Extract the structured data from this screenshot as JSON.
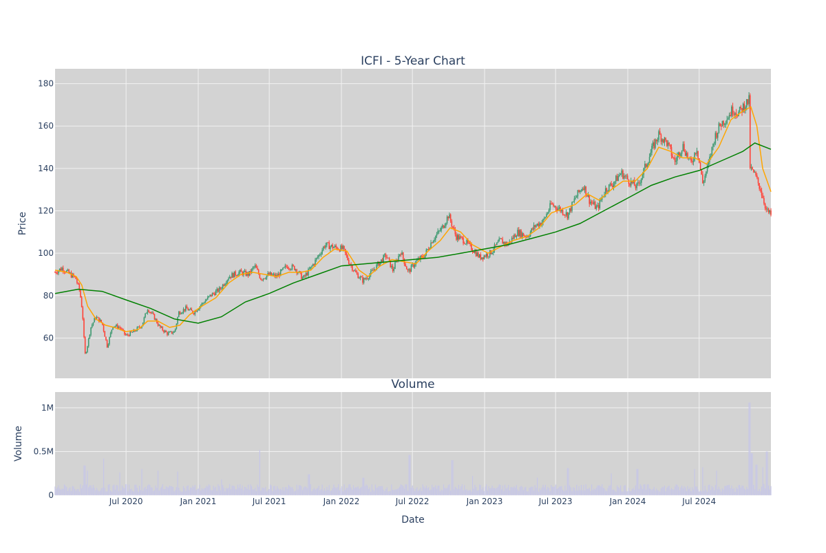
{
  "chart_data": [
    {
      "type": "candlestick",
      "title": "ICFI - 5-Year Chart",
      "ylabel": "Price",
      "xlabel": "",
      "ylim": [
        41,
        187
      ],
      "yticks": [
        60,
        80,
        100,
        120,
        140,
        160,
        180
      ],
      "grid": true,
      "legend": "none",
      "x_range": [
        "2020-01-02",
        "2024-12-31"
      ],
      "colors": {
        "background": "#d3d3d3",
        "grid": "#f2f2f2",
        "increasing": "#3d9970",
        "decreasing": "#ff4136",
        "ma_short": "#ffa500",
        "ma_long": "#008000"
      },
      "price_path": [
        [
          "2020-01-02",
          91
        ],
        [
          "2020-01-20",
          93
        ],
        [
          "2020-02-10",
          90
        ],
        [
          "2020-02-24",
          88
        ],
        [
          "2020-03-05",
          82
        ],
        [
          "2020-03-12",
          72
        ],
        [
          "2020-03-18",
          52
        ],
        [
          "2020-03-23",
          55
        ],
        [
          "2020-04-02",
          65
        ],
        [
          "2020-04-15",
          70
        ],
        [
          "2020-05-01",
          67
        ],
        [
          "2020-05-14",
          56
        ],
        [
          "2020-05-28",
          66
        ],
        [
          "2020-06-15",
          65
        ],
        [
          "2020-07-01",
          61
        ],
        [
          "2020-07-20",
          63
        ],
        [
          "2020-08-10",
          66
        ],
        [
          "2020-08-25",
          74
        ],
        [
          "2020-09-10",
          70
        ],
        [
          "2020-09-25",
          65
        ],
        [
          "2020-10-15",
          62
        ],
        [
          "2020-11-02",
          63
        ],
        [
          "2020-11-12",
          72
        ],
        [
          "2020-12-01",
          74
        ],
        [
          "2020-12-20",
          72
        ],
        [
          "2021-01-10",
          76
        ],
        [
          "2021-02-01",
          80
        ],
        [
          "2021-02-25",
          83
        ],
        [
          "2021-03-20",
          89
        ],
        [
          "2021-04-15",
          91
        ],
        [
          "2021-05-10",
          90
        ],
        [
          "2021-05-25",
          94
        ],
        [
          "2021-06-10",
          88
        ],
        [
          "2021-07-01",
          90
        ],
        [
          "2021-07-20",
          89
        ],
        [
          "2021-08-15",
          94
        ],
        [
          "2021-09-05",
          93
        ],
        [
          "2021-09-25",
          88
        ],
        [
          "2021-10-15",
          93
        ],
        [
          "2021-11-01",
          98
        ],
        [
          "2021-11-20",
          104
        ],
        [
          "2021-12-10",
          103
        ],
        [
          "2022-01-05",
          102
        ],
        [
          "2022-01-20",
          96
        ],
        [
          "2022-02-05",
          91
        ],
        [
          "2022-02-25",
          87
        ],
        [
          "2022-03-15",
          90
        ],
        [
          "2022-04-05",
          95
        ],
        [
          "2022-04-25",
          99
        ],
        [
          "2022-05-12",
          92
        ],
        [
          "2022-06-01",
          101
        ],
        [
          "2022-06-20",
          91
        ],
        [
          "2022-07-10",
          96
        ],
        [
          "2022-08-01",
          99
        ],
        [
          "2022-08-20",
          106
        ],
        [
          "2022-09-15",
          112
        ],
        [
          "2022-10-01",
          118
        ],
        [
          "2022-10-20",
          108
        ],
        [
          "2022-11-10",
          106
        ],
        [
          "2022-12-01",
          102
        ],
        [
          "2022-12-20",
          98
        ],
        [
          "2023-01-15",
          100
        ],
        [
          "2023-02-10",
          106
        ],
        [
          "2023-03-01",
          104
        ],
        [
          "2023-03-25",
          110
        ],
        [
          "2023-04-20",
          108
        ],
        [
          "2023-05-10",
          113
        ],
        [
          "2023-05-30",
          115
        ],
        [
          "2023-06-20",
          123
        ],
        [
          "2023-07-10",
          121
        ],
        [
          "2023-08-01",
          118
        ],
        [
          "2023-08-20",
          126
        ],
        [
          "2023-09-10",
          132
        ],
        [
          "2023-09-25",
          125
        ],
        [
          "2023-10-15",
          121
        ],
        [
          "2023-11-05",
          130
        ],
        [
          "2023-11-25",
          133
        ],
        [
          "2023-12-15",
          138
        ],
        [
          "2024-01-05",
          134
        ],
        [
          "2024-01-25",
          131
        ],
        [
          "2024-02-15",
          141
        ],
        [
          "2024-03-05",
          150
        ],
        [
          "2024-03-20",
          156
        ],
        [
          "2024-04-10",
          152
        ],
        [
          "2024-04-30",
          143
        ],
        [
          "2024-05-20",
          151
        ],
        [
          "2024-06-10",
          142
        ],
        [
          "2024-06-25",
          150
        ],
        [
          "2024-07-10",
          133
        ],
        [
          "2024-07-25",
          142
        ],
        [
          "2024-08-10",
          155
        ],
        [
          "2024-08-25",
          161
        ],
        [
          "2024-09-10",
          164
        ],
        [
          "2024-09-25",
          168
        ],
        [
          "2024-10-10",
          166
        ],
        [
          "2024-10-25",
          170
        ],
        [
          "2024-11-05",
          172
        ],
        [
          "2024-11-08",
          140
        ],
        [
          "2024-11-20",
          137
        ],
        [
          "2024-12-05",
          130
        ],
        [
          "2024-12-20",
          120
        ],
        [
          "2024-12-31",
          118
        ]
      ],
      "ma_short_path": [
        [
          "2020-01-02",
          92
        ],
        [
          "2020-02-01",
          91
        ],
        [
          "2020-02-25",
          89
        ],
        [
          "2020-03-10",
          85
        ],
        [
          "2020-03-25",
          75
        ],
        [
          "2020-04-15",
          69
        ],
        [
          "2020-05-10",
          66
        ],
        [
          "2020-06-01",
          65
        ],
        [
          "2020-07-01",
          63
        ],
        [
          "2020-08-01",
          64
        ],
        [
          "2020-08-25",
          68
        ],
        [
          "2020-09-20",
          68
        ],
        [
          "2020-10-20",
          65
        ],
        [
          "2020-11-15",
          66
        ],
        [
          "2020-12-10",
          71
        ],
        [
          "2021-01-10",
          75
        ],
        [
          "2021-02-15",
          79
        ],
        [
          "2021-03-20",
          86
        ],
        [
          "2021-04-20",
          90
        ],
        [
          "2021-05-20",
          91
        ],
        [
          "2021-06-20",
          90
        ],
        [
          "2021-07-20",
          89
        ],
        [
          "2021-08-20",
          91
        ],
        [
          "2021-09-20",
          91
        ],
        [
          "2021-10-15",
          92
        ],
        [
          "2021-11-15",
          98
        ],
        [
          "2021-12-15",
          102
        ],
        [
          "2022-01-15",
          101
        ],
        [
          "2022-02-15",
          92
        ],
        [
          "2022-03-10",
          89
        ],
        [
          "2022-04-10",
          94
        ],
        [
          "2022-05-10",
          97
        ],
        [
          "2022-06-10",
          96
        ],
        [
          "2022-07-10",
          95
        ],
        [
          "2022-08-10",
          101
        ],
        [
          "2022-09-10",
          106
        ],
        [
          "2022-10-05",
          112
        ],
        [
          "2022-11-01",
          110
        ],
        [
          "2022-12-01",
          104
        ],
        [
          "2023-01-10",
          100
        ],
        [
          "2023-02-10",
          103
        ],
        [
          "2023-03-15",
          106
        ],
        [
          "2023-04-20",
          108
        ],
        [
          "2023-05-20",
          112
        ],
        [
          "2023-06-20",
          119
        ],
        [
          "2023-07-20",
          121
        ],
        [
          "2023-08-20",
          123
        ],
        [
          "2023-09-20",
          128
        ],
        [
          "2023-10-20",
          125
        ],
        [
          "2023-11-20",
          130
        ],
        [
          "2023-12-20",
          134
        ],
        [
          "2024-01-20",
          134
        ],
        [
          "2024-02-20",
          140
        ],
        [
          "2024-03-20",
          150
        ],
        [
          "2024-04-20",
          148
        ],
        [
          "2024-05-20",
          145
        ],
        [
          "2024-06-20",
          145
        ],
        [
          "2024-07-20",
          142
        ],
        [
          "2024-08-20",
          150
        ],
        [
          "2024-09-20",
          163
        ],
        [
          "2024-10-20",
          167
        ],
        [
          "2024-11-10",
          169
        ],
        [
          "2024-11-25",
          160
        ],
        [
          "2024-12-10",
          140
        ],
        [
          "2024-12-31",
          129
        ]
      ],
      "ma_long_path": [
        [
          "2020-01-02",
          81
        ],
        [
          "2020-03-01",
          83
        ],
        [
          "2020-05-01",
          82
        ],
        [
          "2020-07-01",
          78
        ],
        [
          "2020-09-01",
          74
        ],
        [
          "2020-11-01",
          69
        ],
        [
          "2021-01-01",
          67
        ],
        [
          "2021-03-01",
          70
        ],
        [
          "2021-05-01",
          77
        ],
        [
          "2021-07-01",
          81
        ],
        [
          "2021-09-01",
          86
        ],
        [
          "2021-11-01",
          90
        ],
        [
          "2022-01-01",
          94
        ],
        [
          "2022-03-01",
          95
        ],
        [
          "2022-05-01",
          96
        ],
        [
          "2022-07-01",
          97
        ],
        [
          "2022-09-01",
          98
        ],
        [
          "2022-11-01",
          100
        ],
        [
          "2023-01-01",
          102
        ],
        [
          "2023-03-01",
          104
        ],
        [
          "2023-05-01",
          107
        ],
        [
          "2023-07-01",
          110
        ],
        [
          "2023-09-01",
          114
        ],
        [
          "2023-11-01",
          120
        ],
        [
          "2024-01-01",
          126
        ],
        [
          "2024-03-01",
          132
        ],
        [
          "2024-05-01",
          136
        ],
        [
          "2024-07-01",
          139
        ],
        [
          "2024-09-01",
          144
        ],
        [
          "2024-10-20",
          148
        ],
        [
          "2024-11-20",
          152
        ],
        [
          "2024-12-31",
          149
        ]
      ]
    },
    {
      "type": "bar",
      "title": "Volume",
      "ylabel": "Volume",
      "xlabel": "Date",
      "ylim": [
        0,
        1180000
      ],
      "yticks": [
        0,
        500000,
        1000000
      ],
      "ytick_labels": [
        "0",
        "0.5M",
        "1M"
      ],
      "xticks": [
        "2020-07-01",
        "2021-01-01",
        "2021-07-01",
        "2022-01-01",
        "2022-07-01",
        "2023-01-01",
        "2023-07-01",
        "2024-01-01",
        "2024-07-01"
      ],
      "xtick_labels": [
        "Jul 2020",
        "Jan 2021",
        "Jul 2021",
        "Jan 2022",
        "Jul 2022",
        "Jan 2023",
        "Jul 2023",
        "Jan 2024",
        "Jul 2024"
      ],
      "grid": true,
      "colors": {
        "background": "#d3d3d3",
        "bar": "#c6c6e8",
        "grid": "#f2f2f2"
      },
      "baseline_volume": 80000,
      "spikes": [
        [
          "2020-03-18",
          340000
        ],
        [
          "2020-03-25",
          280000
        ],
        [
          "2020-05-05",
          420000
        ],
        [
          "2020-06-15",
          260000
        ],
        [
          "2020-08-10",
          300000
        ],
        [
          "2020-09-20",
          280000
        ],
        [
          "2020-11-10",
          270000
        ],
        [
          "2021-03-01",
          180000
        ],
        [
          "2021-06-07",
          520000
        ],
        [
          "2021-10-10",
          240000
        ],
        [
          "2022-02-25",
          200000
        ],
        [
          "2022-06-24",
          460000
        ],
        [
          "2022-10-10",
          400000
        ],
        [
          "2022-12-01",
          220000
        ],
        [
          "2023-05-15",
          200000
        ],
        [
          "2023-08-01",
          310000
        ],
        [
          "2023-11-20",
          250000
        ],
        [
          "2024-01-25",
          300000
        ],
        [
          "2024-06-20",
          300000
        ],
        [
          "2024-07-10",
          320000
        ],
        [
          "2024-08-15",
          280000
        ],
        [
          "2024-11-07",
          1060000
        ],
        [
          "2024-11-12",
          480000
        ],
        [
          "2024-11-25",
          350000
        ],
        [
          "2024-12-10",
          320000
        ],
        [
          "2024-12-20",
          500000
        ]
      ]
    }
  ]
}
